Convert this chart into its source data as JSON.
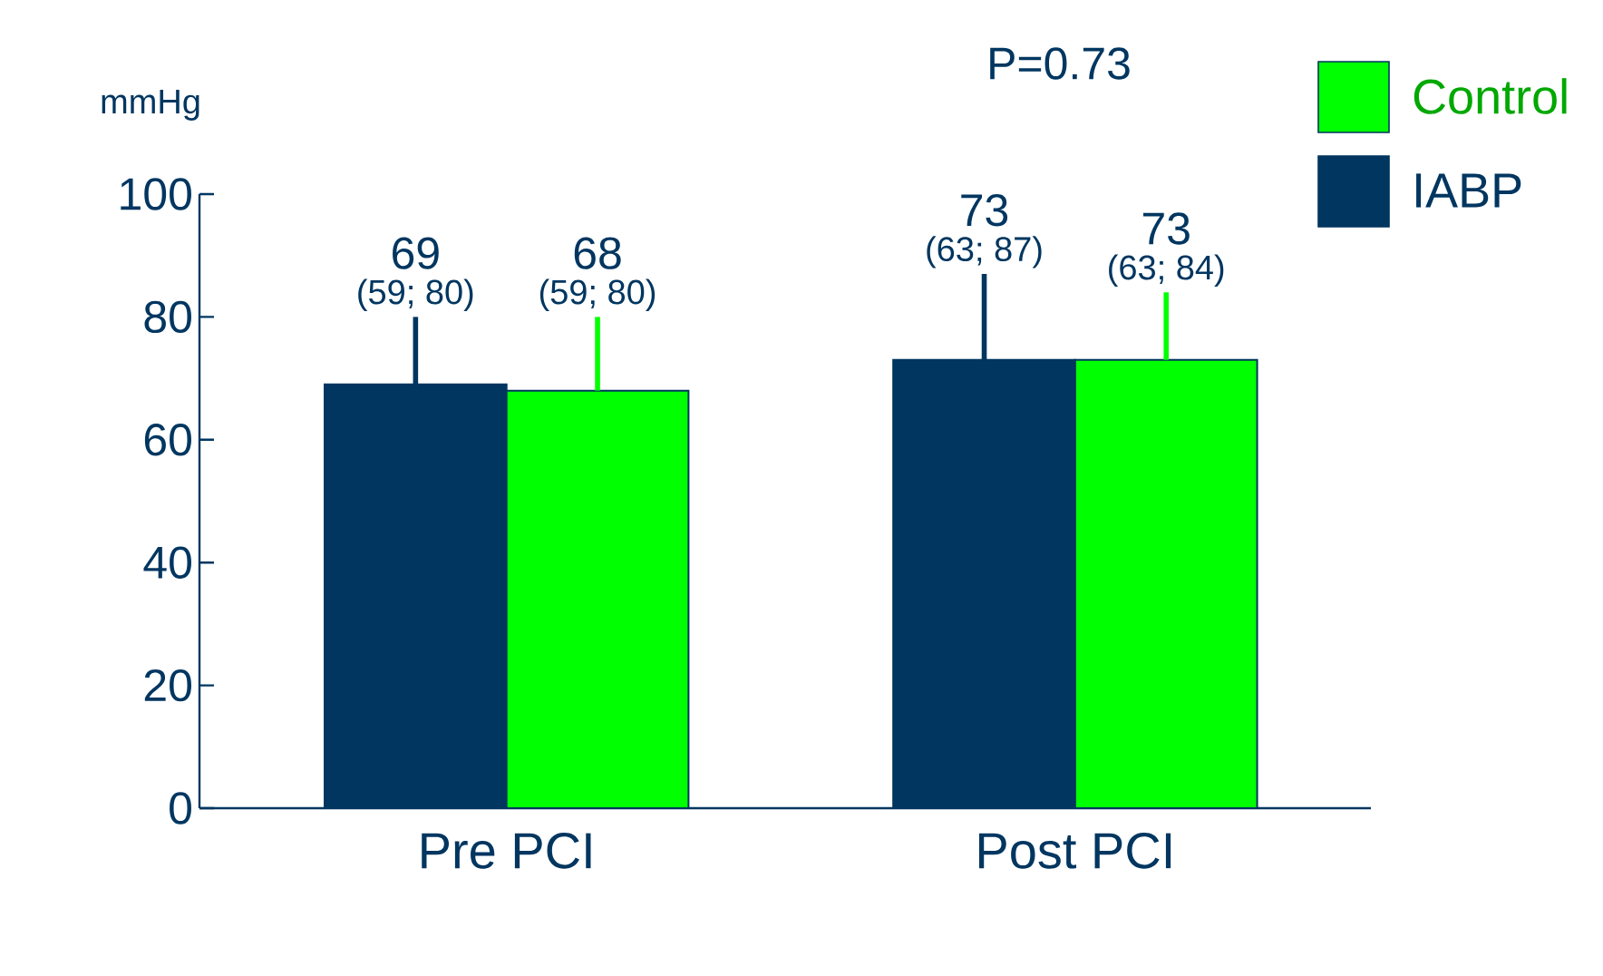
{
  "chart_data": {
    "type": "bar",
    "ylabel": "mmHg",
    "categories": [
      "Pre PCI",
      "Post PCI"
    ],
    "series": [
      {
        "name": "IABP",
        "color": "#003660",
        "values": [
          69,
          73
        ],
        "errors": [
          [
            69,
            80
          ],
          [
            73,
            87
          ]
        ],
        "value_labels": [
          "69",
          "73"
        ]
      },
      {
        "name": "Control",
        "color": "#00ff00",
        "values": [
          68,
          73
        ],
        "errors": [
          [
            68,
            80
          ],
          [
            73,
            84
          ]
        ],
        "value_labels": [
          "68",
          "73"
        ]
      }
    ],
    "annotations": [
      "P=0.73",
      "(59; 80)",
      "(59; 80)",
      "(63; 87)",
      "(63; 84)"
    ],
    "ylim": [
      0,
      100
    ],
    "yticks": [
      0,
      20,
      40,
      60,
      80,
      100
    ],
    "grid": false,
    "legend": "top right"
  }
}
